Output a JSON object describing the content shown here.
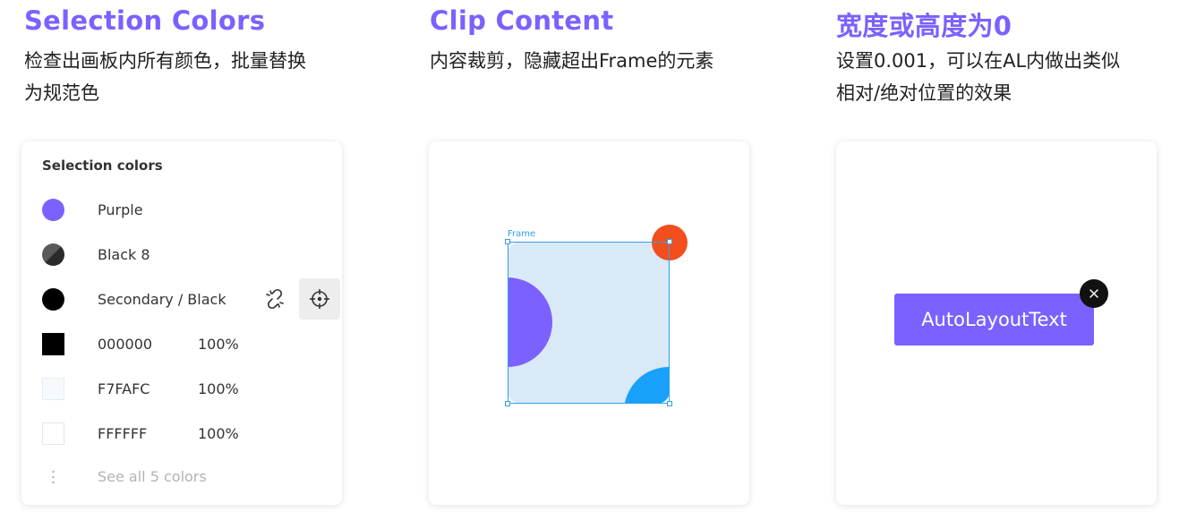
{
  "selection": {
    "heading": "Selection Colors",
    "desc_line1": "检查出画板内所有颜色，批量替换",
    "desc_line2": "为规范色",
    "panel_title": "Selection colors",
    "rows": [
      {
        "label": "Purple",
        "color": "#7B61FF",
        "kind": "style"
      },
      {
        "label": "Black 8",
        "color": "#3C3C3C",
        "kind": "style"
      },
      {
        "label": "Secondary / Black",
        "color": "#000000",
        "kind": "style"
      },
      {
        "label": "000000",
        "pct": "100%",
        "color": "#000000",
        "kind": "hex"
      },
      {
        "label": "F7FAFC",
        "pct": "100%",
        "color": "#F7FAFC",
        "kind": "hex"
      },
      {
        "label": "FFFFFF",
        "pct": "100%",
        "color": "#FFFFFF",
        "kind": "hex"
      }
    ],
    "see_all": "See all 5 colors",
    "icons": {
      "detach": "detach-style-icon",
      "select": "target-crosshair-icon",
      "more": "vertical-dots-icon"
    }
  },
  "clip": {
    "heading": "Clip Content",
    "desc_line1": "内容裁剪，隐藏超出Frame的元素",
    "frame_label": "Frame",
    "colors": {
      "frame_bg": "#DAE9F6",
      "purple": "#7B61FF",
      "blue": "#18A0FB",
      "red": "#F24E1E",
      "selection": "#2FA0E6"
    }
  },
  "zero": {
    "heading": "宽度或高度为0",
    "desc_line1": "设置0.001，可以在AL内做出类似",
    "desc_line2": "相对/绝对位置的效果",
    "autolayout_text": "AutoLayoutText",
    "close_icon": "close-icon"
  },
  "accent": "#7B61FF"
}
